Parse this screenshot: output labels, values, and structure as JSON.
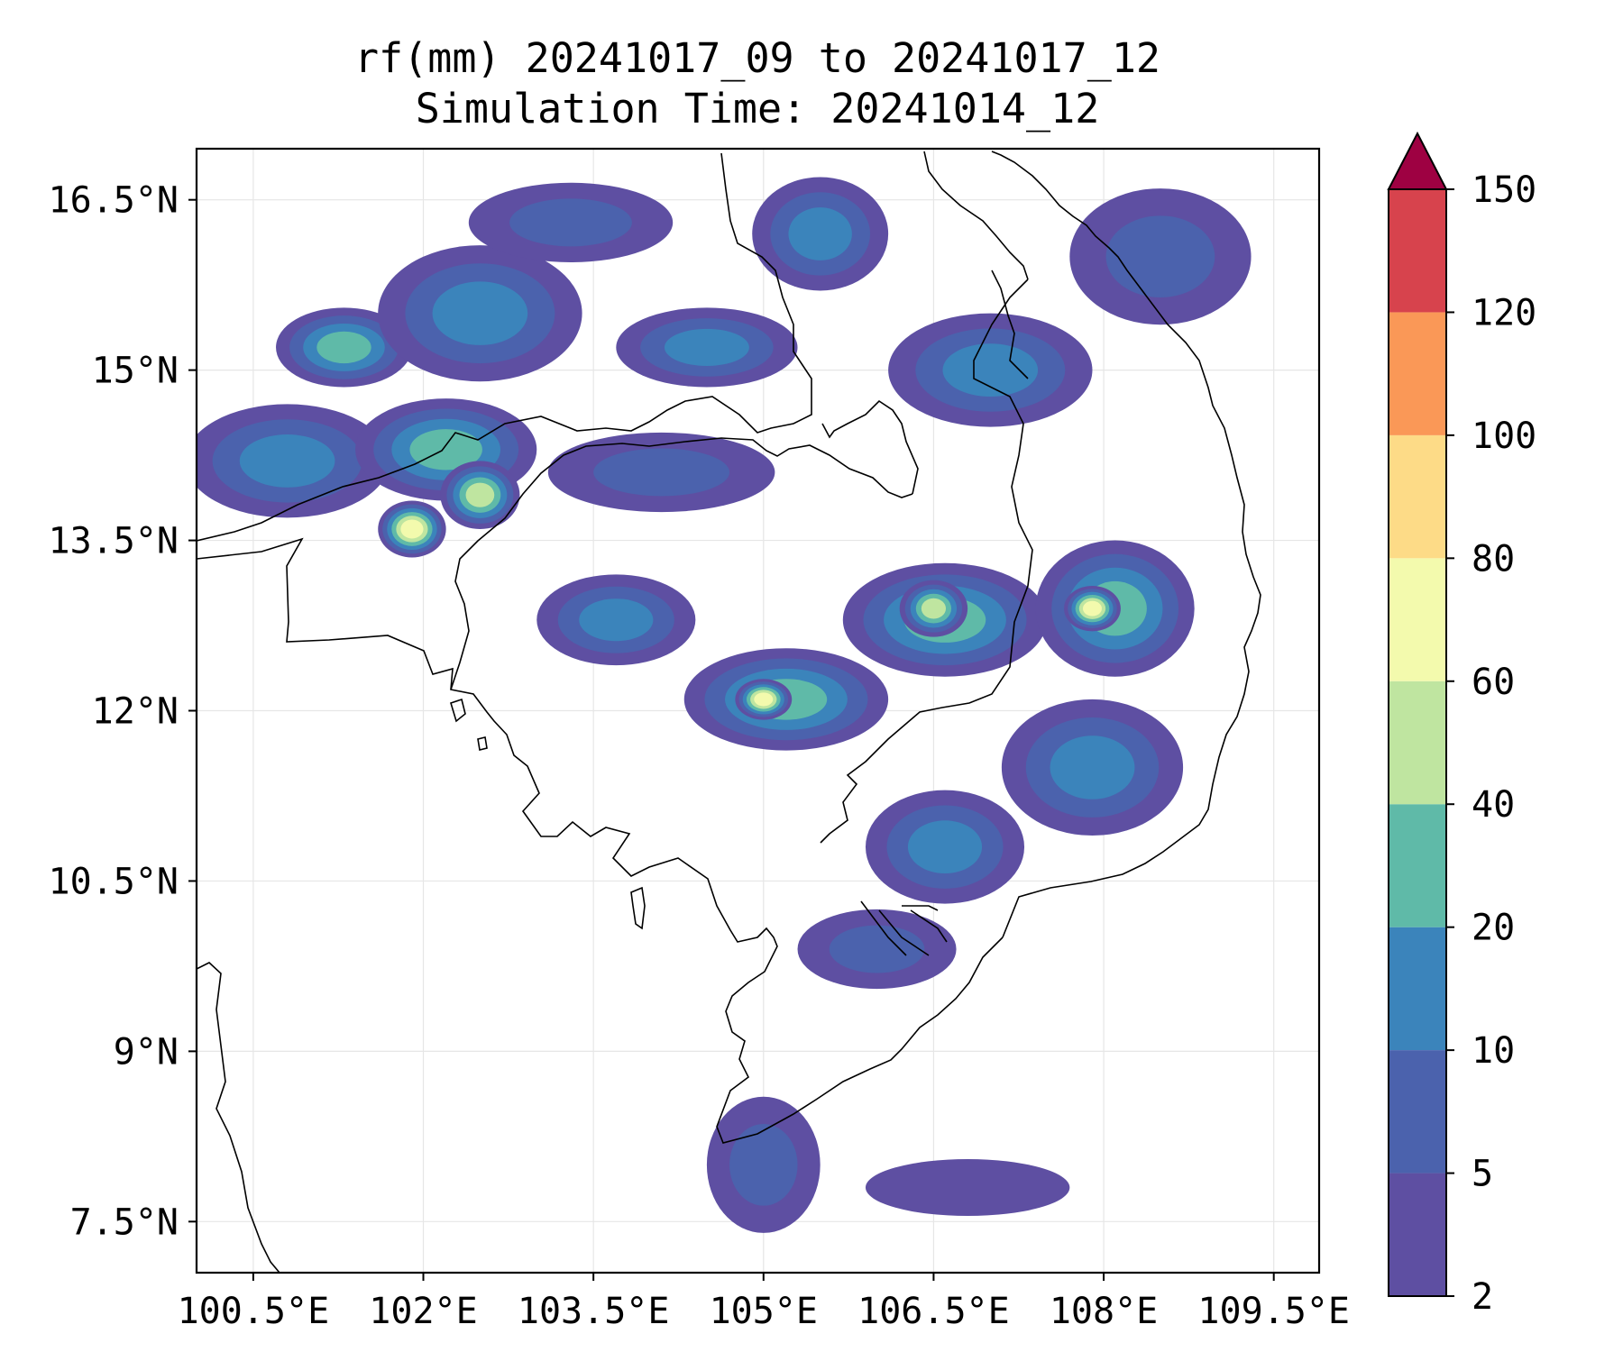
{
  "chart_data": {
    "type": "heatmap",
    "title": "rf(mm) 20241017_09 to 20241017_12",
    "subtitle": "Simulation Time: 20241014_12",
    "xlim": [
      100.0,
      109.9
    ],
    "ylim": [
      7.05,
      16.95
    ],
    "x_ticks": [
      {
        "value": 100.5,
        "label": "100.5°E"
      },
      {
        "value": 102.0,
        "label": "102°E"
      },
      {
        "value": 103.5,
        "label": "103.5°E"
      },
      {
        "value": 105.0,
        "label": "105°E"
      },
      {
        "value": 106.5,
        "label": "106.5°E"
      },
      {
        "value": 108.0,
        "label": "108°E"
      },
      {
        "value": 109.5,
        "label": "109.5°E"
      }
    ],
    "y_ticks": [
      {
        "value": 16.5,
        "label": "16.5°N"
      },
      {
        "value": 15.0,
        "label": "15°N"
      },
      {
        "value": 13.5,
        "label": "13.5°N"
      },
      {
        "value": 12.0,
        "label": "12°N"
      },
      {
        "value": 10.5,
        "label": "10.5°N"
      },
      {
        "value": 9.0,
        "label": "9°N"
      },
      {
        "value": 7.5,
        "label": "7.5°N"
      }
    ],
    "grid": true,
    "colorbar": {
      "placement": "right",
      "levels": [
        2,
        5,
        10,
        20,
        40,
        60,
        80,
        100,
        120,
        150
      ],
      "labels": [
        "2",
        "5",
        "10",
        "20",
        "40",
        "60",
        "80",
        "100",
        "120",
        "150"
      ],
      "colors": [
        "#5e4fa2",
        "#4b62ad",
        "#3b84bb",
        "#5fbaa8",
        "#bfe5a0",
        "#f3faad",
        "#fddb87",
        "#fa9857",
        "#d7434d"
      ],
      "extend_color": "#9e0142"
    },
    "rain_areas": [
      {
        "lon": 101.3,
        "lat": 15.2,
        "rx": 0.6,
        "ry": 0.35,
        "value": 25
      },
      {
        "lon": 100.8,
        "lat": 14.2,
        "rx": 0.9,
        "ry": 0.5,
        "value": 12
      },
      {
        "lon": 102.2,
        "lat": 14.3,
        "rx": 0.8,
        "ry": 0.45,
        "value": 35
      },
      {
        "lon": 102.5,
        "lat": 13.9,
        "rx": 0.35,
        "ry": 0.3,
        "value": 55
      },
      {
        "lon": 101.9,
        "lat": 13.6,
        "rx": 0.3,
        "ry": 0.25,
        "value": 62
      },
      {
        "lon": 102.5,
        "lat": 15.5,
        "rx": 0.9,
        "ry": 0.6,
        "value": 10
      },
      {
        "lon": 103.3,
        "lat": 16.3,
        "rx": 0.9,
        "ry": 0.35,
        "value": 8
      },
      {
        "lon": 104.5,
        "lat": 15.2,
        "rx": 0.8,
        "ry": 0.35,
        "value": 15
      },
      {
        "lon": 105.5,
        "lat": 16.2,
        "rx": 0.6,
        "ry": 0.5,
        "value": 10
      },
      {
        "lon": 104.1,
        "lat": 14.1,
        "rx": 1.0,
        "ry": 0.35,
        "value": 8
      },
      {
        "lon": 103.7,
        "lat": 12.8,
        "rx": 0.7,
        "ry": 0.4,
        "value": 10
      },
      {
        "lon": 105.2,
        "lat": 12.1,
        "rx": 0.9,
        "ry": 0.45,
        "value": 25
      },
      {
        "lon": 105.0,
        "lat": 12.1,
        "rx": 0.25,
        "ry": 0.18,
        "value": 62
      },
      {
        "lon": 106.6,
        "lat": 12.8,
        "rx": 0.9,
        "ry": 0.5,
        "value": 22
      },
      {
        "lon": 106.5,
        "lat": 12.9,
        "rx": 0.3,
        "ry": 0.25,
        "value": 45
      },
      {
        "lon": 107.0,
        "lat": 15.0,
        "rx": 0.9,
        "ry": 0.5,
        "value": 14
      },
      {
        "lon": 108.1,
        "lat": 12.9,
        "rx": 0.7,
        "ry": 0.6,
        "value": 25
      },
      {
        "lon": 107.9,
        "lat": 12.9,
        "rx": 0.25,
        "ry": 0.2,
        "value": 62
      },
      {
        "lon": 107.9,
        "lat": 11.5,
        "rx": 0.8,
        "ry": 0.6,
        "value": 12
      },
      {
        "lon": 106.6,
        "lat": 10.8,
        "rx": 0.7,
        "ry": 0.5,
        "value": 10
      },
      {
        "lon": 106.0,
        "lat": 9.9,
        "rx": 0.7,
        "ry": 0.35,
        "value": 8
      },
      {
        "lon": 105.0,
        "lat": 8.0,
        "rx": 0.5,
        "ry": 0.6,
        "value": 8
      },
      {
        "lon": 108.5,
        "lat": 16.0,
        "rx": 0.8,
        "ry": 0.6,
        "value": 8
      },
      {
        "lon": 106.8,
        "lat": 7.8,
        "rx": 0.9,
        "ry": 0.25,
        "value": 4
      }
    ]
  }
}
